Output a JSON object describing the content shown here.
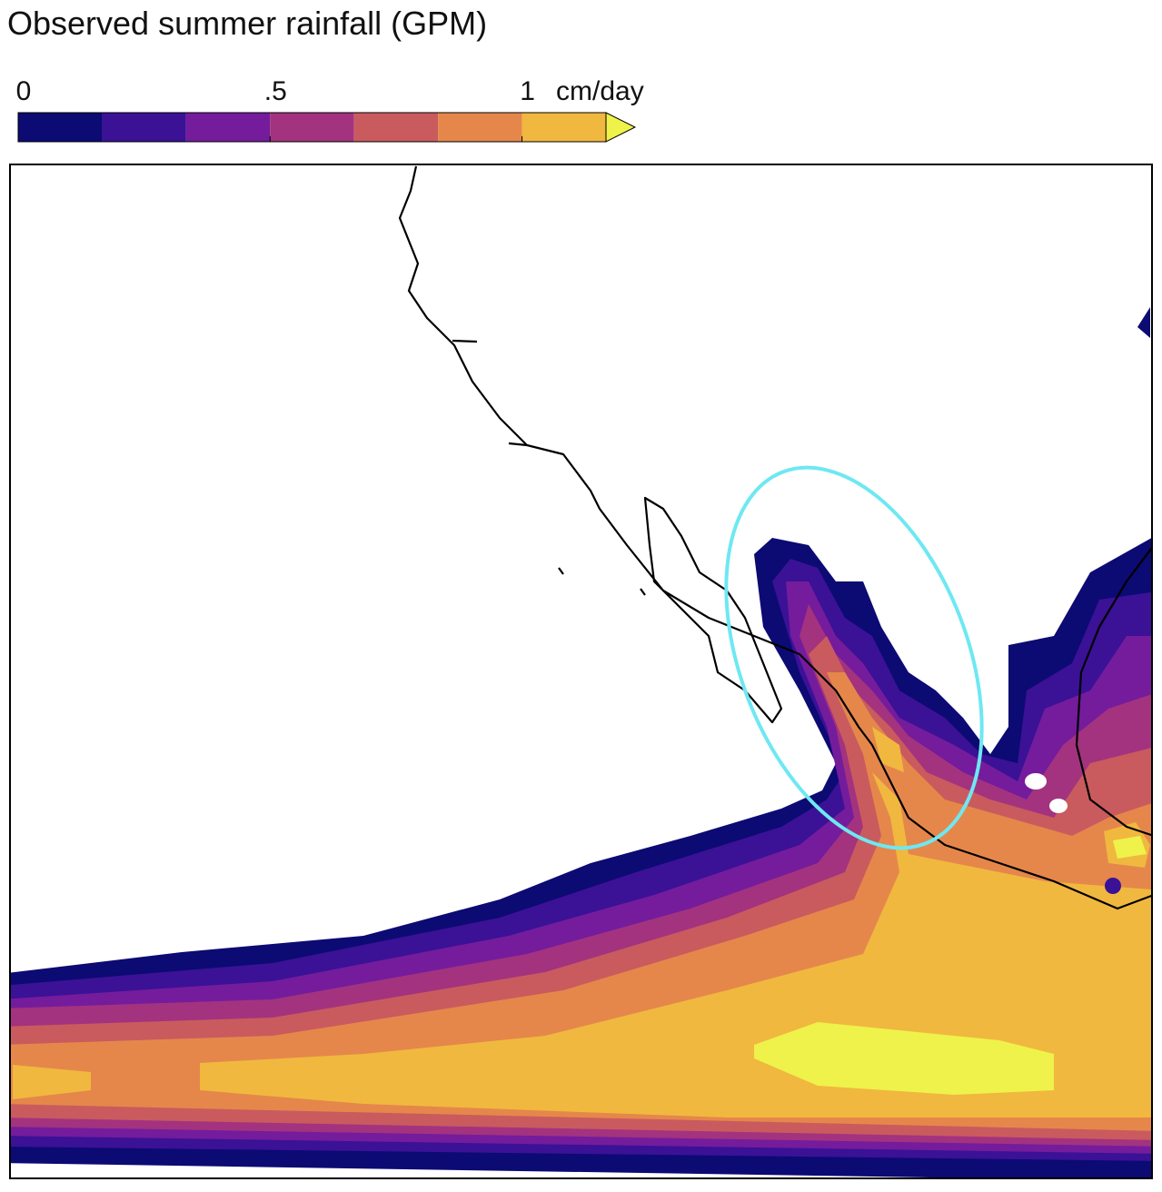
{
  "title": "Observed summer rainfall (GPM)",
  "colorbar": {
    "levels": [
      0,
      0.1667,
      0.3333,
      0.5,
      0.6667,
      0.8333,
      1,
      1.1667
    ],
    "colors": [
      "#0c0a73",
      "#3b1196",
      "#741c9c",
      "#a3337f",
      "#c95b5e",
      "#e5874b",
      "#f0b83f"
    ],
    "extend_color": "#eef24a",
    "ticks": [
      0,
      {
        "value": 0.5,
        "label": ".5"
      },
      1
    ],
    "unit": "cm/day"
  }
}
